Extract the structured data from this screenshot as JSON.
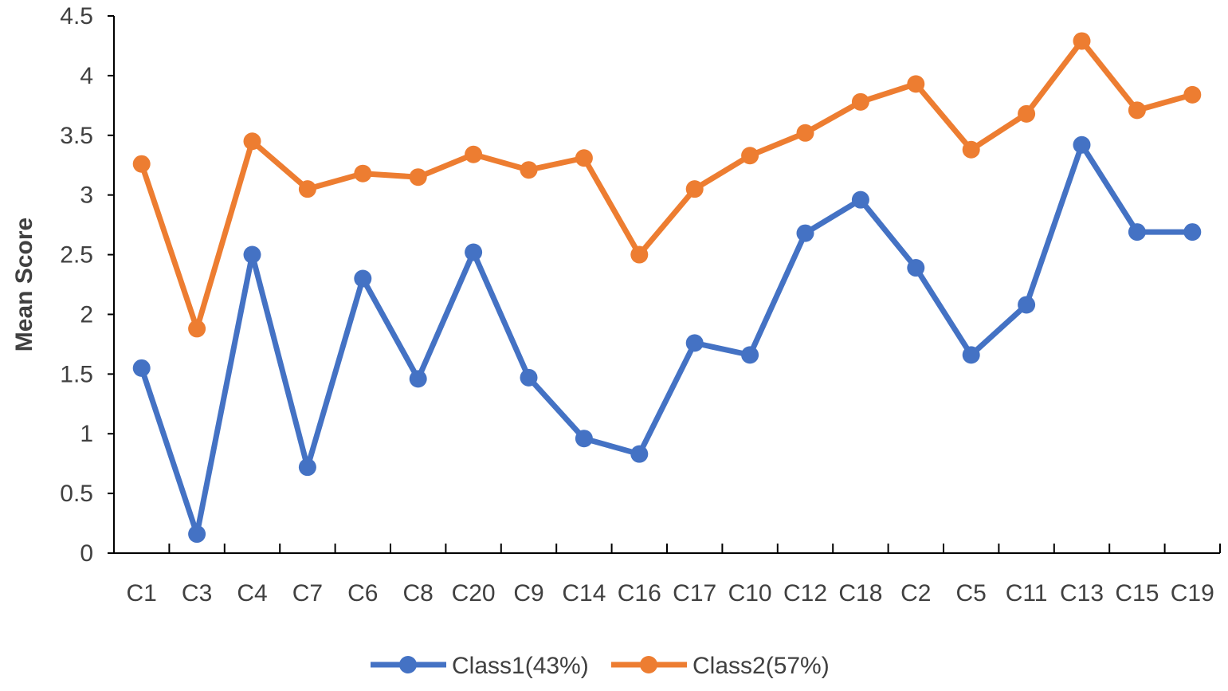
{
  "chart_data": {
    "type": "line",
    "title": "",
    "xlabel": "",
    "ylabel": "Mean Score",
    "ylim": [
      0,
      4.5
    ],
    "yticks": [
      "0",
      "0.5",
      "1",
      "1.5",
      "2",
      "2.5",
      "3",
      "3.5",
      "4",
      "4.5"
    ],
    "categories": [
      "C1",
      "C3",
      "C4",
      "C7",
      "C6",
      "C8",
      "C20",
      "C9",
      "C14",
      "C16",
      "C17",
      "C10",
      "C12",
      "C18",
      "C2",
      "C5",
      "C11",
      "C13",
      "C15",
      "C19"
    ],
    "grid": false,
    "legend_position": "bottom",
    "series": [
      {
        "name": "Class1(43%)",
        "color": "#4472C4",
        "values": [
          1.55,
          0.16,
          2.5,
          0.72,
          2.3,
          1.46,
          2.52,
          1.47,
          0.96,
          0.83,
          1.76,
          1.66,
          2.68,
          2.96,
          2.39,
          1.66,
          2.08,
          3.42,
          2.69,
          2.69
        ]
      },
      {
        "name": "Class2(57%)",
        "color": "#ED7D31",
        "values": [
          3.26,
          1.88,
          3.45,
          3.05,
          3.18,
          3.15,
          3.34,
          3.21,
          3.31,
          2.5,
          3.05,
          3.33,
          3.52,
          3.78,
          3.93,
          3.38,
          3.68,
          4.29,
          3.71,
          3.84
        ]
      }
    ]
  }
}
